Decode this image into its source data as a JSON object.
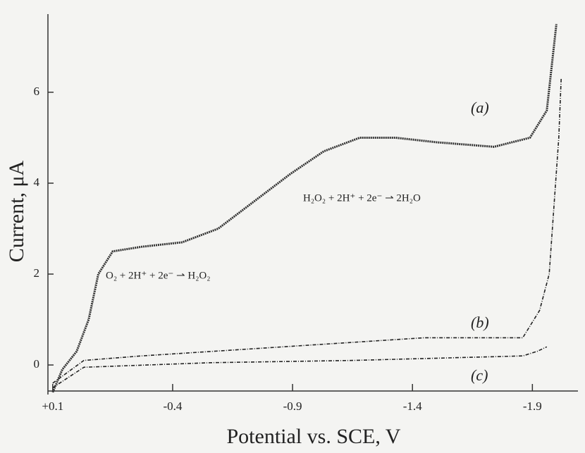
{
  "chart_data": {
    "type": "line",
    "x_label": "Potential vs. SCE, V",
    "y_label": "Current, μA",
    "annotations": [
      "H₂O₂ + 2H⁺ + 2e⁻ ⇀ 2H₂O",
      "O₂ + 2H⁺ + 2e⁻ ⇀ H₂O₂"
    ],
    "xlim": [
      0.12,
      -2.09
    ],
    "ylim": [
      -0.65,
      7.72
    ],
    "xticks": [
      {
        "value": 0.1,
        "label": "+0.1"
      },
      -0.4,
      -0.9,
      -1.4,
      -1.9
    ],
    "yticks": [
      0,
      2,
      4,
      6
    ],
    "series": [
      {
        "name": "(a)",
        "color": "#333333",
        "x": [
          0.1,
          0.06,
          0.0,
          -0.05,
          -0.09,
          -0.15,
          -0.27,
          -0.44,
          -0.59,
          -0.74,
          -0.89,
          -1.03,
          -1.18,
          -1.33,
          -1.5,
          -1.74,
          -1.89,
          -1.96,
          -2.0
        ],
        "values": [
          -0.6,
          -0.1,
          0.3,
          1.0,
          2.0,
          2.5,
          2.6,
          2.7,
          3.0,
          3.6,
          4.2,
          4.7,
          5.0,
          5.0,
          4.9,
          4.8,
          5.0,
          5.6,
          7.5
        ]
      },
      {
        "name": "(b)",
        "color": "#222222",
        "x": [
          0.1,
          -0.03,
          -0.27,
          -0.86,
          -1.45,
          -1.86,
          -1.93,
          -1.97,
          -2.01,
          -2.02
        ],
        "values": [
          -0.4,
          0.1,
          0.2,
          0.4,
          0.6,
          0.6,
          1.2,
          2.0,
          5.0,
          6.3
        ]
      },
      {
        "name": "(c)",
        "color": "#222222",
        "x": [
          0.1,
          -0.03,
          -0.56,
          -1.15,
          -1.86,
          -1.92,
          -1.96
        ],
        "values": [
          -0.5,
          -0.05,
          0.05,
          0.1,
          0.2,
          0.3,
          0.4
        ]
      }
    ]
  }
}
